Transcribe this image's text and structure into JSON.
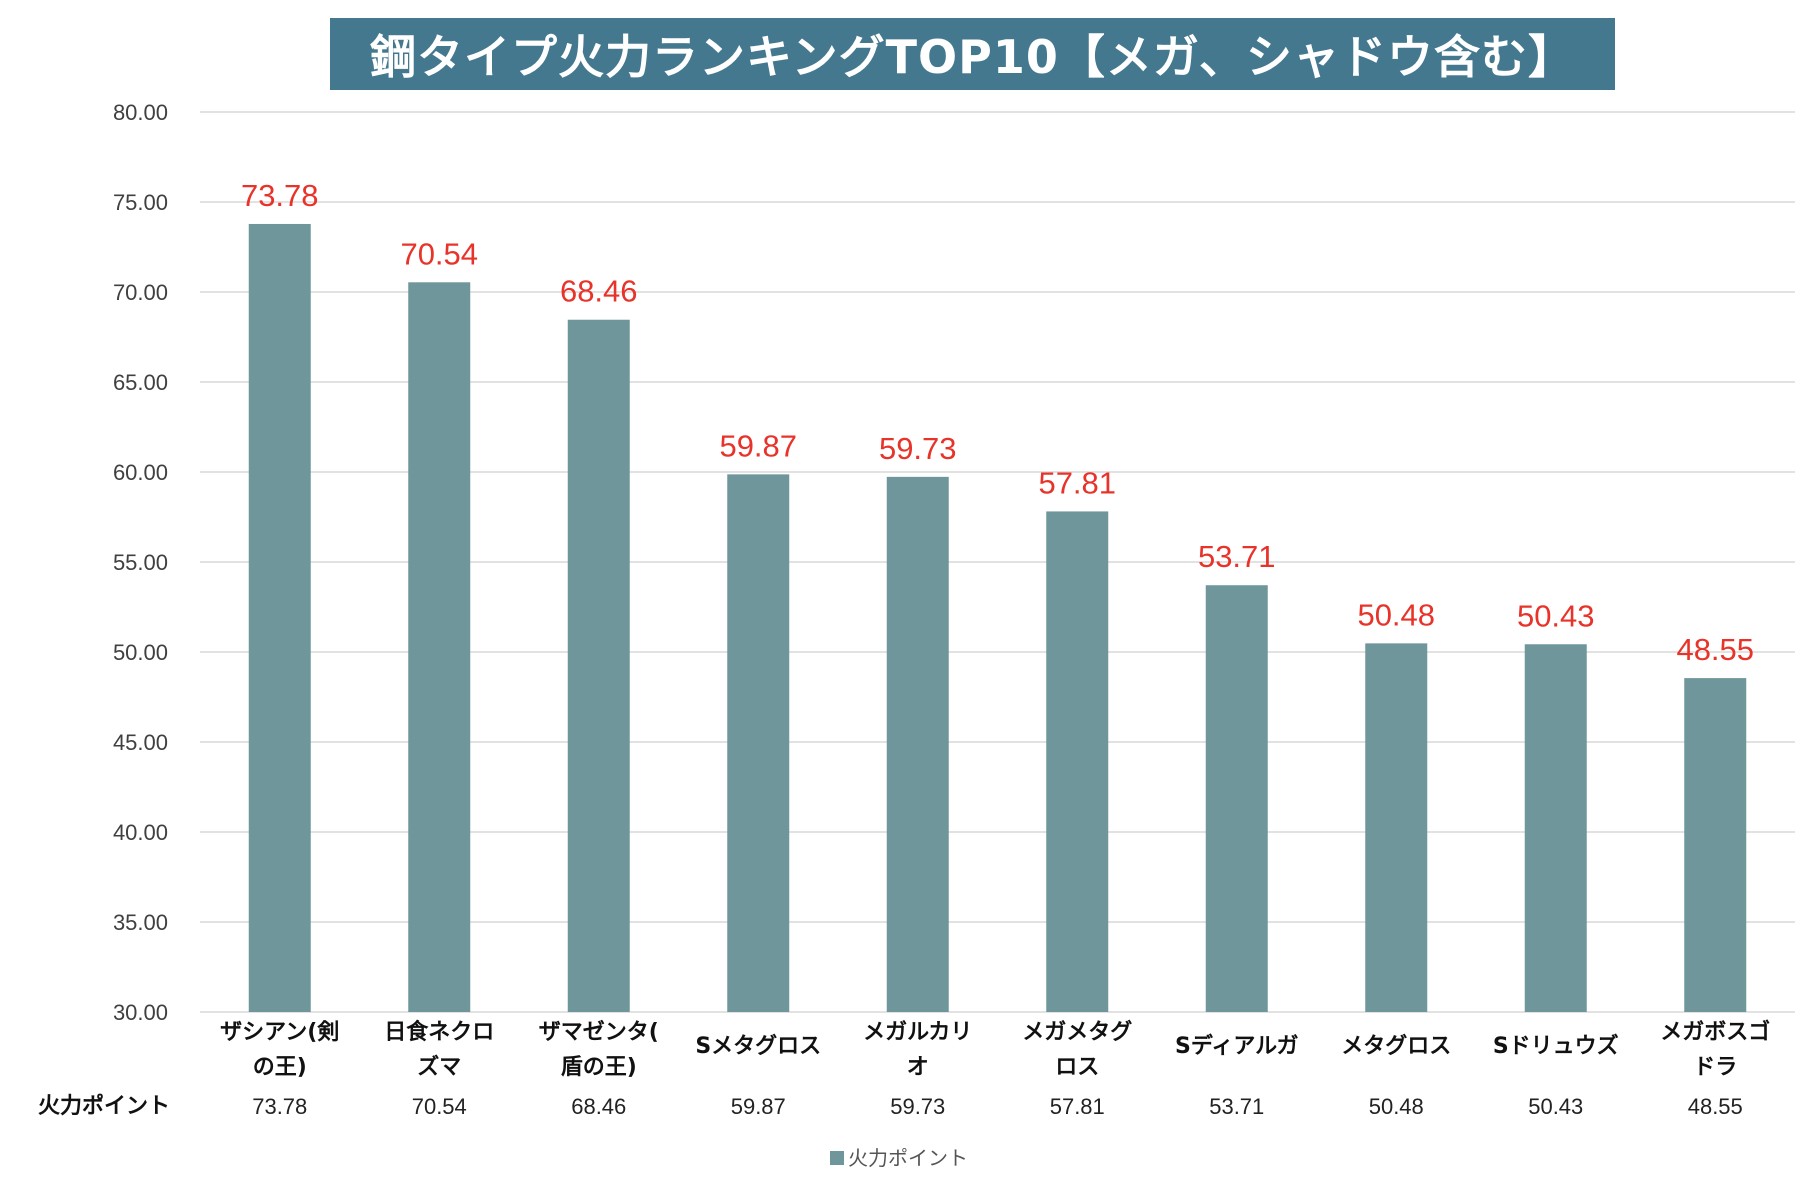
{
  "chart_data": {
    "type": "bar",
    "title": "鋼タイプ火力ランキングTOP10【メガ、シャドウ含む】",
    "series_name": "火力ポイント",
    "categories": [
      [
        "ザシアン(剣",
        "の王)"
      ],
      [
        "日食ネクロ",
        "ズマ"
      ],
      [
        "ザマゼンタ(",
        "盾の王)"
      ],
      [
        "Sメタグロス"
      ],
      [
        "メガルカリ",
        "オ"
      ],
      [
        "メガメタグ",
        "ロス"
      ],
      [
        "Sディアルガ"
      ],
      [
        "メタグロス"
      ],
      [
        "Sドリュウズ"
      ],
      [
        "メガボスゴ",
        "ドラ"
      ]
    ],
    "values": [
      73.78,
      70.54,
      68.46,
      59.87,
      59.73,
      57.81,
      53.71,
      50.48,
      50.43,
      48.55
    ],
    "value_labels": [
      "73.78",
      "70.54",
      "68.46",
      "59.87",
      "59.73",
      "57.81",
      "53.71",
      "50.48",
      "50.43",
      "48.55"
    ],
    "ylim": [
      30,
      80
    ],
    "yticks": [
      "30.00",
      "35.00",
      "40.00",
      "45.00",
      "50.00",
      "55.00",
      "60.00",
      "65.00",
      "70.00",
      "75.00",
      "80.00"
    ],
    "ytick_values": [
      30,
      35,
      40,
      45,
      50,
      55,
      60,
      65,
      70,
      75,
      80
    ],
    "grid": true,
    "legend": "bottom",
    "data_table": true
  },
  "colors": {
    "bar": "#6f979b",
    "label": "#e8332a",
    "title_bg": "#43788e",
    "grid": "#d9d9d9"
  }
}
